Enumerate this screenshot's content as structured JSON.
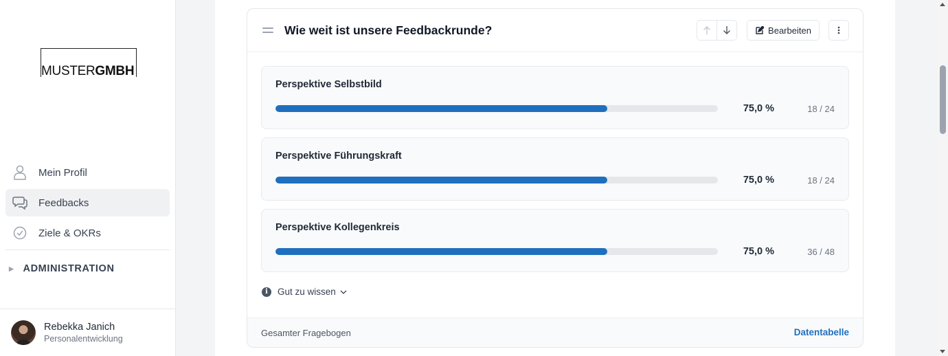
{
  "sidebar": {
    "logo": {
      "part1": "MUSTER",
      "part2": "GMBH"
    },
    "items": [
      {
        "label": "Mein Profil",
        "icon": "user-icon",
        "active": false
      },
      {
        "label": "Feedbacks",
        "icon": "chat-icon",
        "active": true
      },
      {
        "label": "Ziele & OKRs",
        "icon": "check-circle-icon",
        "active": false
      }
    ],
    "admin_label": "ADMINISTRATION",
    "user": {
      "name": "Rebekka Janich",
      "role": "Personalentwicklung"
    }
  },
  "card": {
    "title": "Wie weit ist unsere Feedbackrunde?",
    "edit_label": "Bearbeiten",
    "perspectives": [
      {
        "title": "Perspektive Selbstbild",
        "percent_label": "75,0 %",
        "progress": 0.75,
        "count": "18 / 24"
      },
      {
        "title": "Perspektive Führungskraft",
        "percent_label": "75,0 %",
        "progress": 0.75,
        "count": "18 / 24"
      },
      {
        "title": "Perspektive Kollegenkreis",
        "percent_label": "75,0 %",
        "progress": 0.75,
        "count": "36 / 48"
      }
    ],
    "info_label": "Gut zu wissen",
    "footer_label": "Gesamter Fragebogen",
    "footer_link": "Datentabelle"
  },
  "colors": {
    "accent": "#1f6fbe",
    "active_nav_bg": "#f0f1f3"
  }
}
